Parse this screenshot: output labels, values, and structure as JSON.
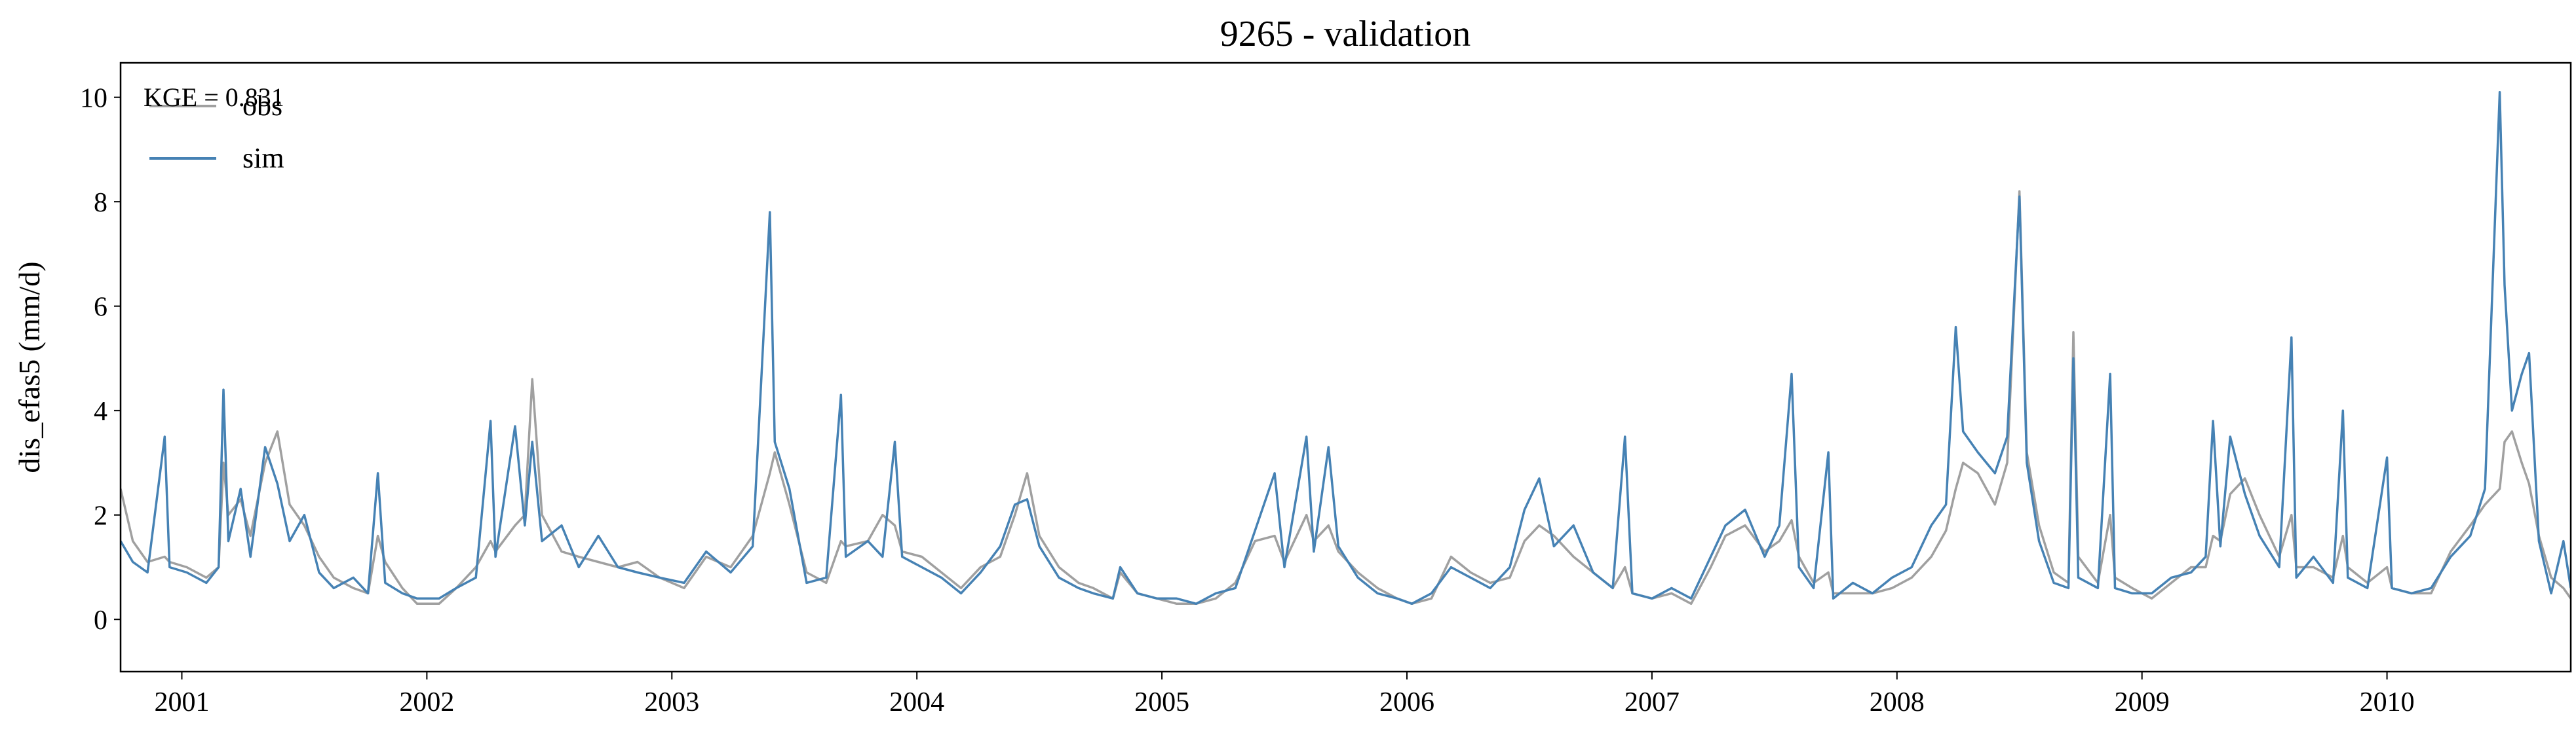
{
  "chart_data": {
    "type": "line",
    "title": "9265 - validation",
    "ylabel": "dis_efas5 (mm/d)",
    "annotation": "KGE = 0.831",
    "legend": "upper left",
    "xlim": [
      2000.75,
      2010.75
    ],
    "xticks": [
      2001,
      2002,
      2003,
      2004,
      2005,
      2006,
      2007,
      2008,
      2009,
      2010
    ],
    "ylim": [
      -1,
      10.66
    ],
    "yticks": [
      0,
      2,
      4,
      6,
      8,
      10
    ],
    "x": [
      2000.75,
      2000.8,
      2000.86,
      2000.93,
      2000.95,
      2001.02,
      2001.1,
      2001.15,
      2001.17,
      2001.19,
      2001.24,
      2001.28,
      2001.34,
      2001.39,
      2001.44,
      2001.5,
      2001.56,
      2001.62,
      2001.7,
      2001.76,
      2001.8,
      2001.83,
      2001.9,
      2001.96,
      2002.05,
      2002.12,
      2002.2,
      2002.26,
      2002.28,
      2002.36,
      2002.4,
      2002.43,
      2002.47,
      2002.55,
      2002.62,
      2002.7,
      2002.78,
      2002.86,
      2002.95,
      2003.05,
      2003.14,
      2003.24,
      2003.33,
      2003.4,
      2003.42,
      2003.48,
      2003.55,
      2003.63,
      2003.69,
      2003.71,
      2003.8,
      2003.86,
      2003.91,
      2003.94,
      2004.02,
      2004.1,
      2004.18,
      2004.26,
      2004.34,
      2004.4,
      2004.45,
      2004.5,
      2004.58,
      2004.66,
      2004.72,
      2004.8,
      2004.83,
      2004.9,
      2004.98,
      2005.06,
      2005.14,
      2005.22,
      2005.3,
      2005.38,
      2005.46,
      2005.5,
      2005.59,
      2005.62,
      2005.68,
      2005.72,
      2005.8,
      2005.88,
      2005.96,
      2006.02,
      2006.1,
      2006.18,
      2006.26,
      2006.34,
      2006.42,
      2006.48,
      2006.54,
      2006.6,
      2006.68,
      2006.76,
      2006.84,
      2006.89,
      2006.92,
      2007.0,
      2007.08,
      2007.16,
      2007.24,
      2007.3,
      2007.38,
      2007.46,
      2007.52,
      2007.57,
      2007.6,
      2007.66,
      2007.72,
      2007.74,
      2007.82,
      2007.9,
      2007.98,
      2008.06,
      2008.14,
      2008.2,
      2008.24,
      2008.27,
      2008.33,
      2008.4,
      2008.45,
      2008.5,
      2008.53,
      2008.58,
      2008.64,
      2008.7,
      2008.72,
      2008.74,
      2008.82,
      2008.87,
      2008.89,
      2008.96,
      2009.04,
      2009.12,
      2009.2,
      2009.26,
      2009.29,
      2009.32,
      2009.36,
      2009.42,
      2009.48,
      2009.56,
      2009.61,
      2009.63,
      2009.7,
      2009.78,
      2009.82,
      2009.84,
      2009.92,
      2010.0,
      2010.02,
      2010.1,
      2010.18,
      2010.26,
      2010.34,
      2010.4,
      2010.46,
      2010.48,
      2010.51,
      2010.55,
      2010.58,
      2010.62,
      2010.67,
      2010.72,
      2010.75
    ],
    "series": [
      {
        "name": "obs",
        "color": "#a0a0a0",
        "values": [
          2.5,
          1.5,
          1.1,
          1.2,
          1.1,
          1.0,
          0.8,
          1.0,
          3.0,
          2.0,
          2.3,
          1.6,
          3.0,
          3.6,
          2.2,
          1.8,
          1.2,
          0.8,
          0.6,
          0.5,
          1.6,
          1.1,
          0.6,
          0.3,
          0.3,
          0.6,
          1.0,
          1.5,
          1.3,
          1.8,
          2.0,
          4.6,
          2.0,
          1.3,
          1.2,
          1.1,
          1.0,
          1.1,
          0.8,
          0.6,
          1.2,
          1.0,
          1.6,
          2.8,
          3.2,
          2.2,
          0.9,
          0.7,
          1.5,
          1.4,
          1.5,
          2.0,
          1.8,
          1.3,
          1.2,
          0.9,
          0.6,
          1.0,
          1.2,
          2.0,
          2.8,
          1.6,
          1.0,
          0.7,
          0.6,
          0.4,
          0.9,
          0.5,
          0.4,
          0.3,
          0.3,
          0.4,
          0.7,
          1.5,
          1.6,
          1.1,
          2.0,
          1.5,
          1.8,
          1.3,
          0.9,
          0.6,
          0.4,
          0.3,
          0.4,
          1.2,
          0.9,
          0.7,
          0.8,
          1.5,
          1.8,
          1.6,
          1.2,
          0.9,
          0.6,
          1.0,
          0.5,
          0.4,
          0.5,
          0.3,
          1.0,
          1.6,
          1.8,
          1.3,
          1.5,
          1.9,
          1.2,
          0.7,
          0.9,
          0.5,
          0.5,
          0.5,
          0.6,
          0.8,
          1.2,
          1.7,
          2.5,
          3.0,
          2.8,
          2.2,
          3.0,
          8.2,
          3.2,
          1.8,
          0.9,
          0.7,
          5.5,
          1.2,
          0.7,
          2.0,
          0.8,
          0.6,
          0.4,
          0.7,
          1.0,
          1.0,
          1.6,
          1.5,
          2.4,
          2.7,
          2.0,
          1.2,
          2.0,
          1.0,
          1.0,
          0.8,
          1.6,
          1.0,
          0.7,
          1.0,
          0.6,
          0.5,
          0.5,
          1.3,
          1.8,
          2.2,
          2.5,
          3.4,
          3.6,
          3.0,
          2.6,
          1.6,
          0.8,
          0.6,
          0.4
        ]
      },
      {
        "name": "sim",
        "color": "#4682b4",
        "values": [
          1.5,
          1.1,
          0.9,
          3.5,
          1.0,
          0.9,
          0.7,
          1.0,
          4.4,
          1.5,
          2.5,
          1.2,
          3.3,
          2.6,
          1.5,
          2.0,
          0.9,
          0.6,
          0.8,
          0.5,
          2.8,
          0.7,
          0.5,
          0.4,
          0.4,
          0.6,
          0.8,
          3.8,
          1.2,
          3.7,
          1.8,
          3.4,
          1.5,
          1.8,
          1.0,
          1.6,
          1.0,
          0.9,
          0.8,
          0.7,
          1.3,
          0.9,
          1.4,
          7.8,
          3.4,
          2.5,
          0.7,
          0.8,
          4.3,
          1.2,
          1.5,
          1.2,
          3.4,
          1.2,
          1.0,
          0.8,
          0.5,
          0.9,
          1.4,
          2.2,
          2.3,
          1.4,
          0.8,
          0.6,
          0.5,
          0.4,
          1.0,
          0.5,
          0.4,
          0.4,
          0.3,
          0.5,
          0.6,
          1.7,
          2.8,
          1.0,
          3.5,
          1.3,
          3.3,
          1.4,
          0.8,
          0.5,
          0.4,
          0.3,
          0.5,
          1.0,
          0.8,
          0.6,
          1.0,
          2.1,
          2.7,
          1.4,
          1.8,
          0.9,
          0.6,
          3.5,
          0.5,
          0.4,
          0.6,
          0.4,
          1.2,
          1.8,
          2.1,
          1.2,
          1.8,
          4.7,
          1.0,
          0.6,
          3.2,
          0.4,
          0.7,
          0.5,
          0.8,
          1.0,
          1.8,
          2.2,
          5.6,
          3.6,
          3.2,
          2.8,
          3.5,
          8.1,
          3.0,
          1.5,
          0.7,
          0.6,
          5.0,
          0.8,
          0.6,
          4.7,
          0.6,
          0.5,
          0.5,
          0.8,
          0.9,
          1.2,
          3.8,
          1.4,
          3.5,
          2.4,
          1.6,
          1.0,
          5.4,
          0.8,
          1.2,
          0.7,
          4.0,
          0.8,
          0.6,
          3.1,
          0.6,
          0.5,
          0.6,
          1.2,
          1.6,
          2.5,
          10.1,
          6.4,
          4.0,
          4.7,
          5.1,
          1.5,
          0.5,
          1.5,
          0.6
        ]
      }
    ]
  }
}
